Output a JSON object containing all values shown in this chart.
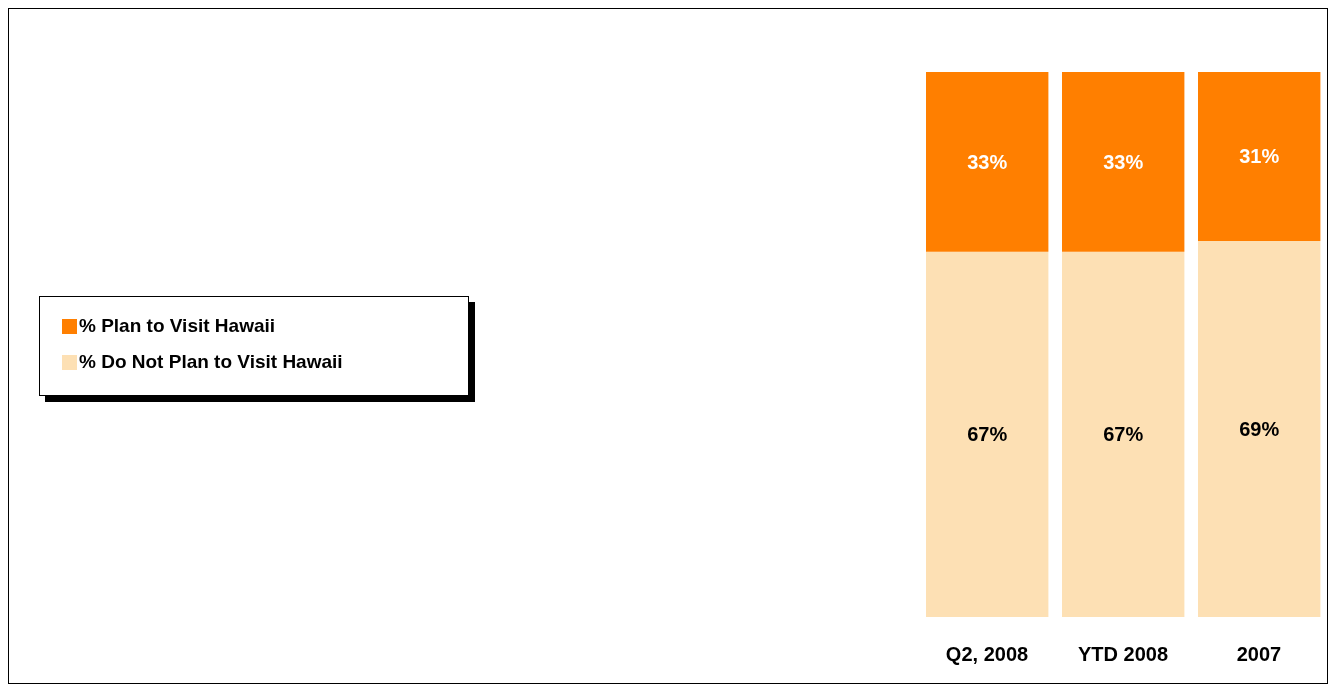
{
  "chart_data": {
    "type": "bar",
    "stacked": true,
    "categories": [
      "Q2, 2008",
      "YTD 2008",
      "2007"
    ],
    "series": [
      {
        "name": "% Do Not Plan to Visit Hawaii",
        "color": "#fde0b4",
        "values": [
          67,
          67,
          69
        ],
        "value_labels": [
          "67%",
          "67%",
          "69%"
        ]
      },
      {
        "name": "% Plan to Visit Hawaii",
        "color": "#ff7f00",
        "values": [
          33,
          33,
          31
        ],
        "value_labels": [
          "33%",
          "33%",
          "31%"
        ]
      }
    ],
    "legend": "left",
    "grid": false
  }
}
